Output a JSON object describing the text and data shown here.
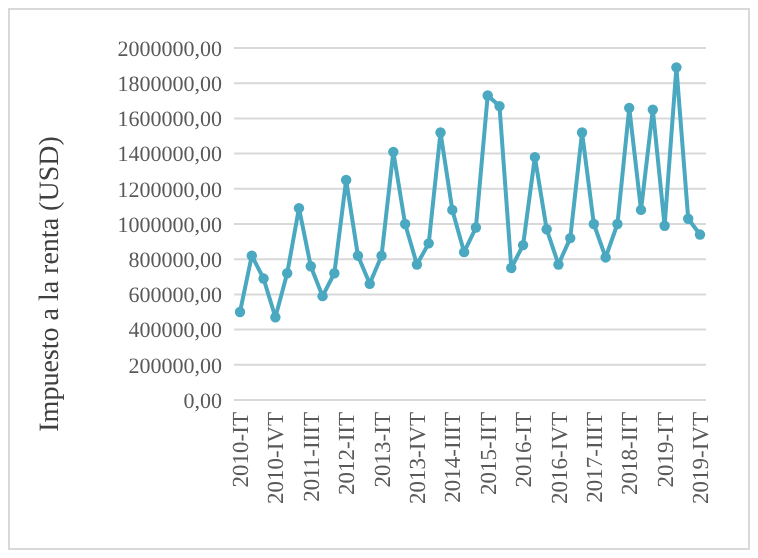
{
  "chart_data": {
    "type": "line",
    "ylabel": "Impuesto a la renta (USD)",
    "categories": [
      "2010-IT",
      null,
      null,
      "2010-IVT",
      null,
      null,
      "2011-IIIT",
      null,
      null,
      "2012-IIT",
      null,
      null,
      "2013-IT",
      null,
      null,
      "2013-IVT",
      null,
      null,
      "2014-IIIT",
      null,
      null,
      "2015-IIT",
      null,
      null,
      "2016-IT",
      null,
      null,
      "2016-IVT",
      null,
      null,
      "2017-IIIT",
      null,
      null,
      "2018-IIT",
      null,
      null,
      "2019-IT",
      null,
      null,
      "2019-IVT"
    ],
    "series": [
      {
        "color": "#4aa8c0",
        "values": [
          500000,
          820000,
          690000,
          470000,
          720000,
          1090000,
          760000,
          590000,
          720000,
          1250000,
          820000,
          660000,
          820000,
          1410000,
          1000000,
          770000,
          890000,
          1520000,
          1080000,
          840000,
          980000,
          1730000,
          1670000,
          750000,
          880000,
          1380000,
          970000,
          770000,
          920000,
          1520000,
          1000000,
          810000,
          1000000,
          1660000,
          1080000,
          1650000,
          990000,
          1890000,
          1030000,
          940000
        ]
      }
    ],
    "ylim": [
      0,
      2000000
    ],
    "yticks": [
      {
        "value": 0,
        "label": "0,00"
      },
      {
        "value": 200000,
        "label": "200000,00"
      },
      {
        "value": 400000,
        "label": "400000,00"
      },
      {
        "value": 600000,
        "label": "600000,00"
      },
      {
        "value": 800000,
        "label": "800000,00"
      },
      {
        "value": 1000000,
        "label": "1000000,00"
      },
      {
        "value": 1200000,
        "label": "1200000,00"
      },
      {
        "value": 1400000,
        "label": "1400000,00"
      },
      {
        "value": 1600000,
        "label": "1600000,00"
      },
      {
        "value": 1800000,
        "label": "1800000,00"
      },
      {
        "value": 2000000,
        "label": "2000000,00"
      }
    ],
    "grid": "y",
    "marker": "circle",
    "line_style": "solid"
  }
}
